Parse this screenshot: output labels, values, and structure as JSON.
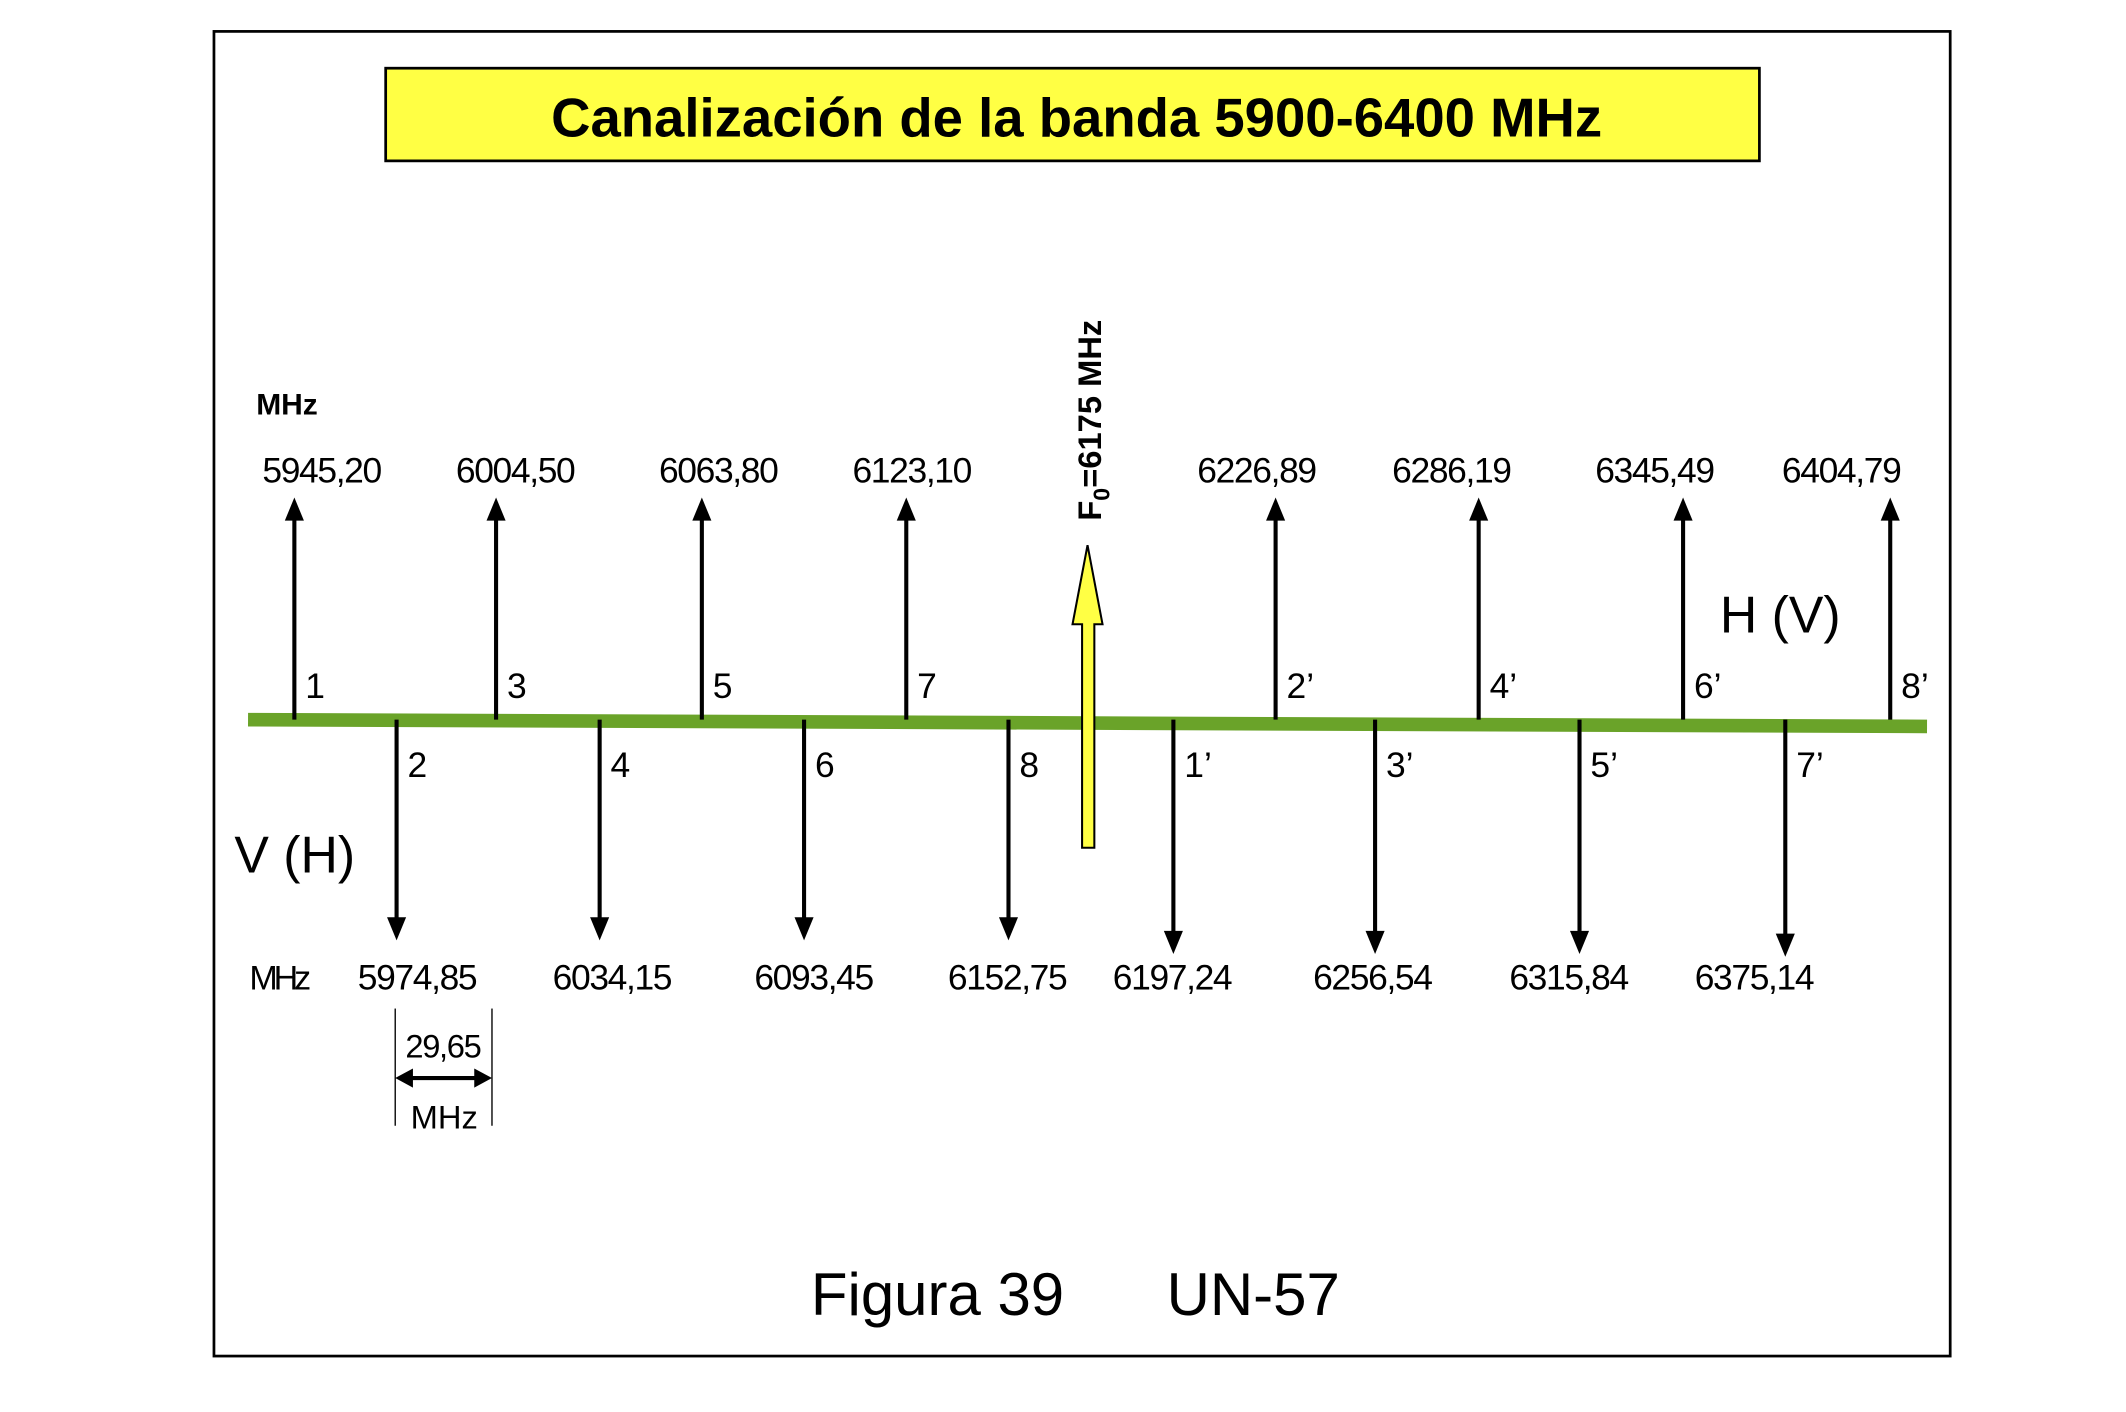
{
  "title": "Canalización de la banda 5900-6400 MHz",
  "upper": {
    "unit": "MHz",
    "channels": [
      {
        "label": "1",
        "freq": "5945,20"
      },
      {
        "label": "3",
        "freq": "6004,50"
      },
      {
        "label": "5",
        "freq": "6063,80"
      },
      {
        "label": "7",
        "freq": "6123,10"
      },
      {
        "label": "2’",
        "freq": "6226,89"
      },
      {
        "label": "4’",
        "freq": "6286,19"
      },
      {
        "label": "6’",
        "freq": "6345,49"
      },
      {
        "label": "8’",
        "freq": "6404,79"
      }
    ]
  },
  "lower": {
    "unit": "MHz",
    "channels": [
      {
        "label": "2",
        "freq": "5974,85"
      },
      {
        "label": "4",
        "freq": "6034,15"
      },
      {
        "label": "6",
        "freq": "6093,45"
      },
      {
        "label": "8",
        "freq": "6152,75"
      },
      {
        "label": "1’",
        "freq": "6197,24"
      },
      {
        "label": "3’",
        "freq": "6256,54"
      },
      {
        "label": "5’",
        "freq": "6315,84"
      },
      {
        "label": "7’",
        "freq": "6375,14"
      }
    ]
  },
  "center": {
    "symbol": "F",
    "subscript": "0",
    "text": "=6175 MHz"
  },
  "polarization_upper": "H (V)",
  "polarization_lower": "V (H)",
  "spacing": {
    "value": "29,65",
    "unit": "MHz"
  },
  "caption": {
    "figure": "Figura 39",
    "code": "UN-57"
  }
}
